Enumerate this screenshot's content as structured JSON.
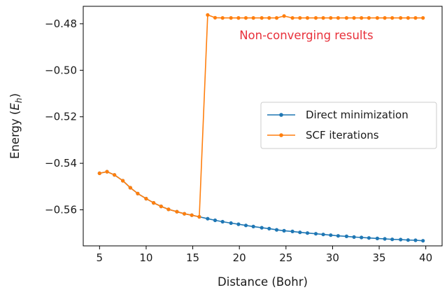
{
  "chart_data": {
    "type": "line",
    "title": "",
    "xlabel": "Distance (Bohr)",
    "ylabel_text": "Energy (",
    "ylabel_symbol": "E",
    "ylabel_sub": "h",
    "ylabel_close": ")",
    "xlim": [
      3.25,
      41.75
    ],
    "ylim": [
      -0.5755,
      -0.4725
    ],
    "xticks": [
      5,
      10,
      15,
      20,
      25,
      30,
      35,
      40
    ],
    "xtick_labels": [
      "5",
      "10",
      "15",
      "20",
      "25",
      "30",
      "35",
      "40"
    ],
    "yticks": [
      -0.56,
      -0.54,
      -0.52,
      -0.5,
      -0.48
    ],
    "ytick_labels": [
      "−0.56",
      "−0.54",
      "−0.52",
      "−0.50",
      "−0.48"
    ],
    "grid": false,
    "legend_position": "center-right",
    "annotation": {
      "text": "Non-converging results",
      "x": 20,
      "y": -0.4866,
      "color": "#e8303a"
    },
    "series": [
      {
        "name": "Direct minimization",
        "color": "#1f77b4",
        "x": [
          5.0,
          5.8,
          6.6,
          7.5,
          8.3,
          9.1,
          10.0,
          10.8,
          11.6,
          12.4,
          13.3,
          14.1,
          14.9,
          15.7,
          16.6,
          17.4,
          18.2,
          19.1,
          19.9,
          20.7,
          21.5,
          22.4,
          23.2,
          24.0,
          24.8,
          25.7,
          26.5,
          27.3,
          28.2,
          29.0,
          29.8,
          30.6,
          31.5,
          32.3,
          33.1,
          33.9,
          34.8,
          35.6,
          36.4,
          37.3,
          38.1,
          38.9,
          39.7
        ],
        "y": [
          -0.5443,
          -0.5436,
          -0.545,
          -0.5475,
          -0.5505,
          -0.553,
          -0.5552,
          -0.557,
          -0.5585,
          -0.5598,
          -0.5608,
          -0.5617,
          -0.5623,
          -0.563,
          -0.5638,
          -0.5645,
          -0.5651,
          -0.5657,
          -0.5662,
          -0.5667,
          -0.5672,
          -0.5677,
          -0.5681,
          -0.5686,
          -0.569,
          -0.5693,
          -0.5697,
          -0.57,
          -0.5703,
          -0.5706,
          -0.5709,
          -0.5712,
          -0.5714,
          -0.5717,
          -0.5719,
          -0.5721,
          -0.5723,
          -0.5725,
          -0.5727,
          -0.5728,
          -0.573,
          -0.5731,
          -0.5733
        ]
      },
      {
        "name": "SCF iterations",
        "color": "#ff7f0e",
        "x": [
          5.0,
          5.8,
          6.6,
          7.5,
          8.3,
          9.1,
          10.0,
          10.8,
          11.6,
          12.4,
          13.3,
          14.1,
          14.9,
          15.7,
          16.6,
          17.4,
          18.2,
          19.1,
          19.9,
          20.7,
          21.5,
          22.4,
          23.2,
          24.0,
          24.8,
          25.7,
          26.5,
          27.3,
          28.2,
          29.0,
          29.8,
          30.6,
          31.5,
          32.3,
          33.1,
          33.9,
          34.8,
          35.6,
          36.4,
          37.3,
          38.1,
          38.9,
          39.7
        ],
        "y": [
          -0.5443,
          -0.5436,
          -0.545,
          -0.5475,
          -0.5505,
          -0.553,
          -0.5552,
          -0.557,
          -0.5585,
          -0.5598,
          -0.5608,
          -0.5617,
          -0.5623,
          -0.563,
          -0.4762,
          -0.4774,
          -0.4775,
          -0.4775,
          -0.4775,
          -0.4775,
          -0.4775,
          -0.4775,
          -0.4775,
          -0.4775,
          -0.4767,
          -0.4775,
          -0.4775,
          -0.4775,
          -0.4775,
          -0.4775,
          -0.4775,
          -0.4775,
          -0.4775,
          -0.4775,
          -0.4775,
          -0.4775,
          -0.4775,
          -0.4775,
          -0.4775,
          -0.4775,
          -0.4775,
          -0.4775,
          -0.4775
        ]
      }
    ]
  }
}
